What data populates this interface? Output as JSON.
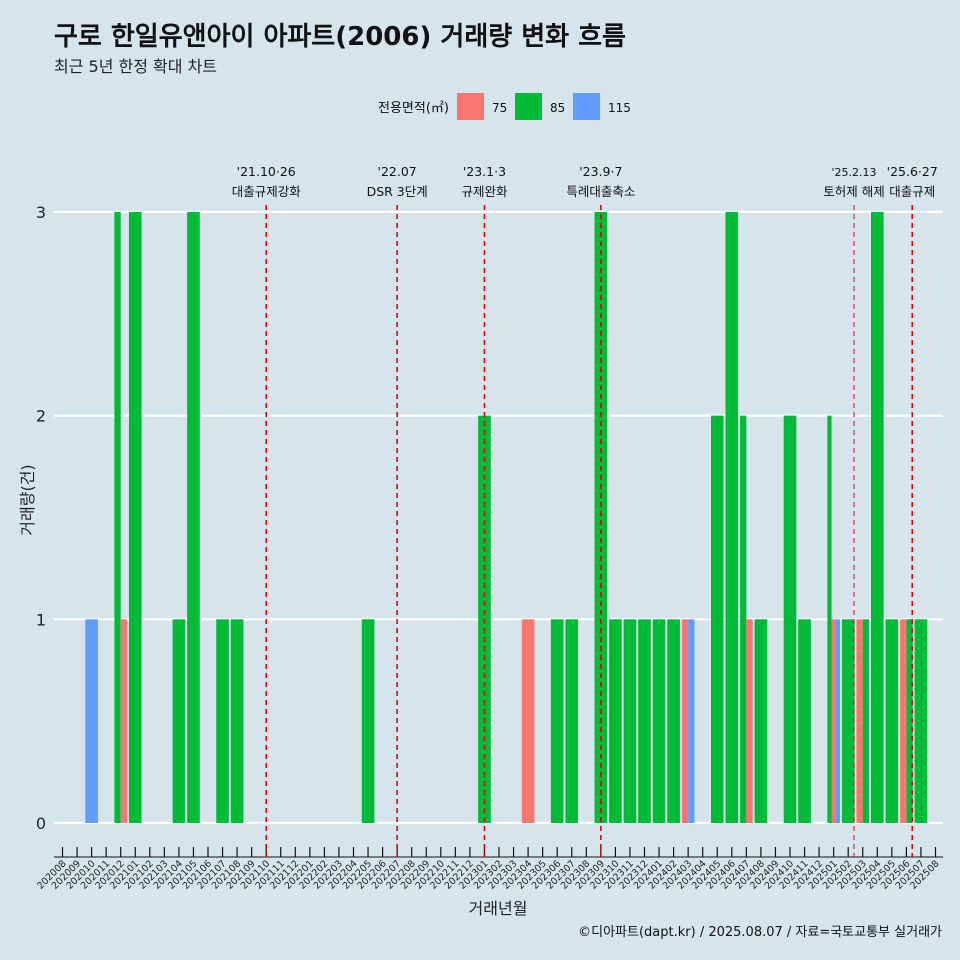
{
  "title": "구로 한일유앤아이 아파트(2006) 거래량 변화 흐름",
  "subtitle": "최근 5년 한정 확대 차트",
  "caption": "©디아파트(dapt.kr) / 2025.08.07 / 자료=국토교통부 실거래가",
  "chart_data": {
    "type": "bar",
    "title": "구로 한일유앤아이 아파트(2006) 거래량 변화 흐름",
    "xlabel": "거래년월",
    "ylabel": "거래량(건)",
    "ylim": [
      0,
      3
    ],
    "yticks": [
      0,
      1,
      2,
      3
    ],
    "legend_title": "전용면적(㎡)",
    "legend_position": "top",
    "series": [
      {
        "name": "75",
        "color": "#F8766D"
      },
      {
        "name": "85",
        "color": "#00BA38"
      },
      {
        "name": "115",
        "color": "#619CFF"
      }
    ],
    "categories": [
      "202008",
      "202009",
      "202010",
      "202011",
      "202012",
      "202101",
      "202102",
      "202103",
      "202104",
      "202105",
      "202106",
      "202107",
      "202108",
      "202109",
      "202110",
      "202111",
      "202112",
      "202201",
      "202202",
      "202203",
      "202204",
      "202205",
      "202206",
      "202207",
      "202208",
      "202209",
      "202210",
      "202211",
      "202212",
      "202301",
      "202302",
      "202303",
      "202304",
      "202305",
      "202306",
      "202307",
      "202308",
      "202309",
      "202310",
      "202311",
      "202312",
      "202401",
      "202402",
      "202403",
      "202404",
      "202405",
      "202406",
      "202407",
      "202408",
      "202409",
      "202410",
      "202411",
      "202412",
      "202501",
      "202502",
      "202503",
      "202504",
      "202505",
      "202506",
      "202507",
      "202508"
    ],
    "bars": [
      {
        "month": "202010",
        "values": {
          "115": 1
        }
      },
      {
        "month": "202012",
        "values": {
          "75": 1,
          "85": 3
        }
      },
      {
        "month": "202101",
        "values": {
          "85": 3
        }
      },
      {
        "month": "202104",
        "values": {
          "85": 1
        }
      },
      {
        "month": "202105",
        "values": {
          "85": 3
        }
      },
      {
        "month": "202107",
        "values": {
          "85": 1
        }
      },
      {
        "month": "202108",
        "values": {
          "85": 1
        }
      },
      {
        "month": "202205",
        "values": {
          "85": 1
        }
      },
      {
        "month": "202301",
        "values": {
          "85": 2
        }
      },
      {
        "month": "202304",
        "values": {
          "75": 1
        }
      },
      {
        "month": "202306",
        "values": {
          "85": 1
        }
      },
      {
        "month": "202307",
        "values": {
          "85": 1
        }
      },
      {
        "month": "202309",
        "values": {
          "85": 3
        }
      },
      {
        "month": "202310",
        "values": {
          "85": 1
        }
      },
      {
        "month": "202311",
        "values": {
          "85": 1
        }
      },
      {
        "month": "202312",
        "values": {
          "85": 1
        }
      },
      {
        "month": "202401",
        "values": {
          "85": 1
        }
      },
      {
        "month": "202402",
        "values": {
          "85": 1
        }
      },
      {
        "month": "202403",
        "values": {
          "75": 1,
          "115": 1
        }
      },
      {
        "month": "202405",
        "values": {
          "85": 2
        }
      },
      {
        "month": "202406",
        "values": {
          "85": 3
        }
      },
      {
        "month": "202407",
        "values": {
          "75": 1,
          "85": 2
        }
      },
      {
        "month": "202408",
        "values": {
          "85": 1
        }
      },
      {
        "month": "202410",
        "values": {
          "85": 2
        }
      },
      {
        "month": "202411",
        "values": {
          "85": 1
        }
      },
      {
        "month": "202501",
        "values": {
          "75": 1,
          "85": 2,
          "115": 1
        }
      },
      {
        "month": "202502",
        "values": {
          "85": 1
        }
      },
      {
        "month": "202503",
        "values": {
          "75": 1,
          "85": 1
        }
      },
      {
        "month": "202504",
        "values": {
          "85": 3
        }
      },
      {
        "month": "202505",
        "values": {
          "85": 1
        }
      },
      {
        "month": "202506",
        "values": {
          "75": 1,
          "85": 1
        }
      },
      {
        "month": "202507",
        "values": {
          "85": 1
        }
      }
    ],
    "annotations": [
      {
        "month_pos": 14.0,
        "date": "'21.10·26",
        "label": "대출규제강화"
      },
      {
        "month_pos": 23.0,
        "date": "'22.07",
        "label": "DSR 3단계"
      },
      {
        "month_pos": 29.0,
        "date": "'23.1·3",
        "label": "규제완화"
      },
      {
        "month_pos": 37.0,
        "date": "'23.9·7",
        "label": "특례대출축소"
      },
      {
        "month_pos": 54.4,
        "date": "'25.2.13",
        "label": "토허제 해제"
      },
      {
        "month_pos": 58.4,
        "date": "'25.6·27",
        "label": "대출규제"
      }
    ]
  }
}
